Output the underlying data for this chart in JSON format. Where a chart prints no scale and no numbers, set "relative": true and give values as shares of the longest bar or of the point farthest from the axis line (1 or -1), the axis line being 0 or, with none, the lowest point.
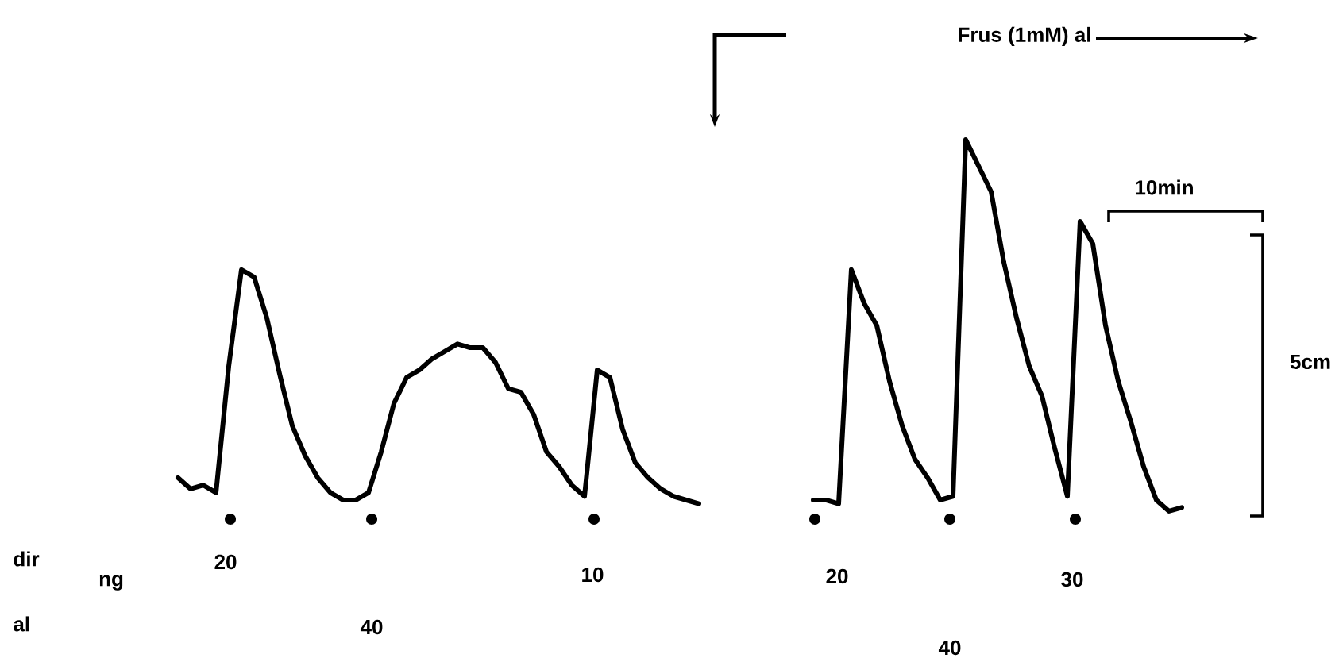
{
  "chart_data": {
    "type": "line",
    "relative": true,
    "categories": [
      null,
      null,
      null,
      null,
      null,
      null,
      null,
      null,
      null,
      null,
      null,
      null,
      null,
      null,
      null,
      null,
      null,
      null,
      null,
      null,
      null,
      null,
      null,
      null,
      null,
      null,
      null,
      null,
      null,
      null,
      null,
      null,
      null,
      null,
      null,
      null,
      null,
      null,
      null,
      null,
      null,
      null,
      null,
      null,
      null,
      null,
      null,
      null,
      null,
      null,
      null,
      null,
      null,
      null,
      null,
      null,
      null,
      null,
      null,
      null,
      null,
      null,
      null,
      null,
      null,
      null,
      null,
      null,
      null,
      null,
      null,
      null,
      null,
      null,
      null,
      null,
      null,
      null,
      null,
      null
    ],
    "series": [
      {
        "color": "#000000",
        "values": [
          0.09,
          0.06,
          0.07,
          0.05,
          0.39,
          0.65,
          0.63,
          0.52,
          0.37,
          0.23,
          0.15,
          0.09,
          0.05,
          0.03,
          0.03,
          0.05,
          0.16,
          0.29,
          0.36,
          0.38,
          0.41,
          0.43,
          0.45,
          0.44,
          0.44,
          0.4,
          0.33,
          0.32,
          0.26,
          0.16,
          0.12,
          0.07,
          0.04,
          0.38,
          0.36,
          0.22,
          0.13,
          0.09,
          0.06,
          0.04,
          0.03,
          0.02,
          null,
          null,
          null,
          null,
          null,
          null,
          null,
          null,
          null,
          null,
          null,
          null,
          null,
          null,
          null,
          null,
          null,
          null,
          null,
          null,
          null,
          null,
          null,
          null,
          null,
          null,
          null,
          null,
          null,
          null,
          null,
          null,
          null,
          null,
          null,
          null,
          null,
          null
        ]
      },
      {
        "color": "#000000",
        "values": [
          null,
          null,
          null,
          null,
          null,
          null,
          null,
          null,
          null,
          null,
          null,
          null,
          null,
          null,
          null,
          null,
          null,
          null,
          null,
          null,
          null,
          null,
          null,
          null,
          null,
          null,
          null,
          null,
          null,
          null,
          null,
          null,
          null,
          null,
          null,
          null,
          null,
          null,
          null,
          null,
          null,
          null,
          null,
          null,
          null,
          null,
          null,
          null,
          null,
          null,
          0.03,
          0.03,
          0.02,
          0.65,
          0.56,
          0.5,
          0.35,
          0.23,
          0.14,
          0.09,
          0.03,
          0.04,
          1.0,
          0.93,
          0.86,
          0.67,
          0.52,
          0.39,
          0.31,
          0.17,
          0.04,
          0.78,
          0.72,
          0.5,
          0.35,
          0.24,
          0.12,
          0.03,
          0.0,
          0.01
        ]
      }
    ],
    "annotations": [
      "Frus (1mM) al",
      "10min",
      "5cm",
      "dir",
      "ng",
      "al",
      "20",
      "40",
      "10",
      "20",
      "30",
      "40"
    ]
  }
}
